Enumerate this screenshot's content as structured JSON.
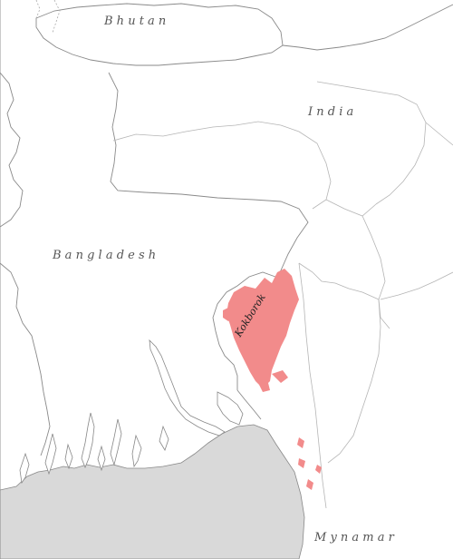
{
  "map": {
    "labels": {
      "bhutan": "B h u t a n",
      "india": "I n d i a",
      "bangladesh": "B a n g l a d e s h",
      "myanmar": "M y n a m a r",
      "language": "Kokborok"
    },
    "colors": {
      "land": "#ffffff",
      "sea": "#d9d9d9",
      "border": "#8a8a8a",
      "language_area": "#f28b8b"
    }
  }
}
